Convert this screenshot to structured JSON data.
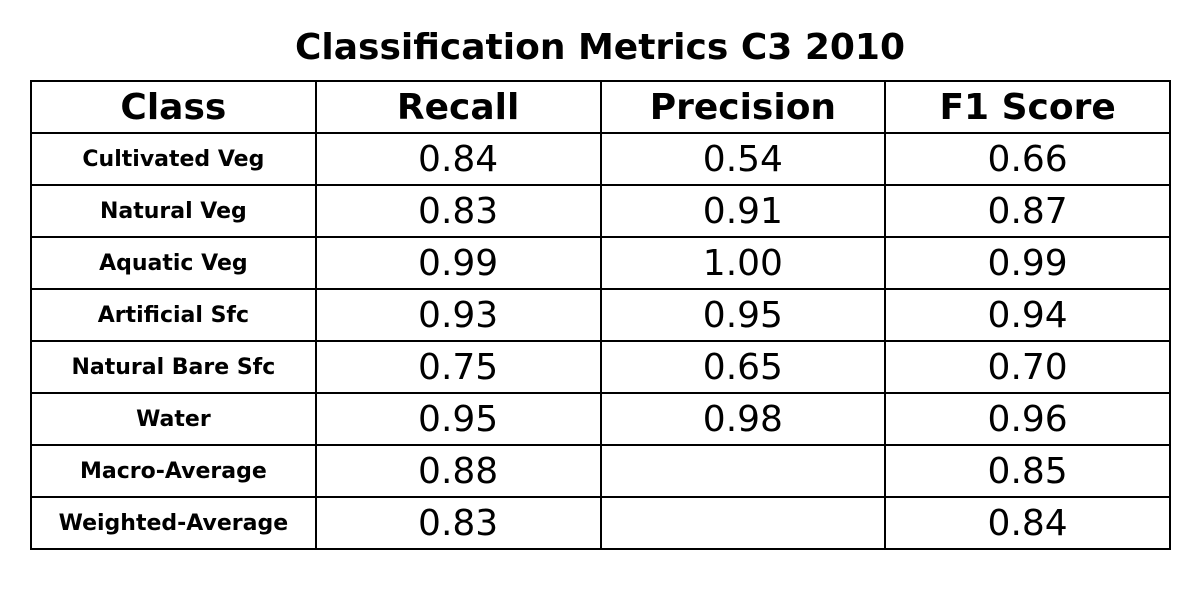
{
  "chart_data": {
    "type": "table",
    "title": "Classification Metrics C3 2010",
    "columns": [
      "Class",
      "Recall",
      "Precision",
      "F1 Score"
    ],
    "rows": [
      [
        "Cultivated Veg",
        "0.84",
        "0.54",
        "0.66"
      ],
      [
        "Natural Veg",
        "0.83",
        "0.91",
        "0.87"
      ],
      [
        "Aquatic Veg",
        "0.99",
        "1.00",
        "0.99"
      ],
      [
        "Artificial Sfc",
        "0.93",
        "0.95",
        "0.94"
      ],
      [
        "Natural Bare Sfc",
        "0.75",
        "0.65",
        "0.70"
      ],
      [
        "Water",
        "0.95",
        "0.98",
        "0.96"
      ],
      [
        "Macro-Average",
        "0.88",
        "",
        "0.85"
      ],
      [
        "Weighted-Average",
        "0.83",
        "",
        "0.84"
      ]
    ]
  }
}
